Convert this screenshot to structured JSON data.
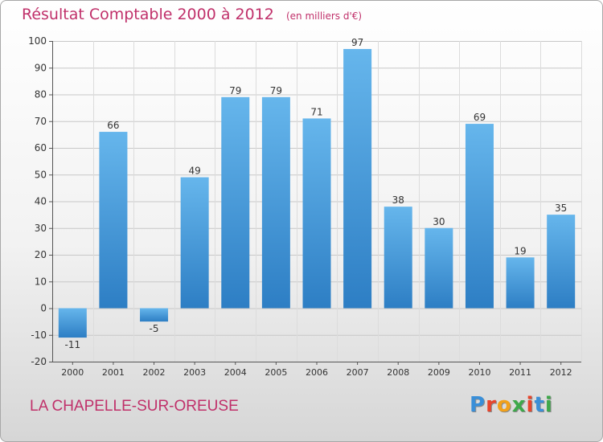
{
  "title": "Résultat Comptable 2000 à 2012",
  "subtitle": "(en milliers d'€)",
  "location": "LA CHAPELLE-SUR-OREUSE",
  "logo": {
    "text": "Proxiti",
    "letter_colors": [
      "#3a8fd8",
      "#e8452c",
      "#f2a11a",
      "#3da84a",
      "#e8452c",
      "#3a8fd8",
      "#3da84a"
    ]
  },
  "colors": {
    "bar_top": "#66b6ec",
    "bar_bottom": "#2d7ec4",
    "title": "#c0306a",
    "grid": "#c8c8c8"
  },
  "chart_data": {
    "type": "bar",
    "title": "Résultat Comptable 2000 à 2012",
    "subtitle": "(en milliers d'€)",
    "xlabel": "",
    "ylabel": "",
    "categories": [
      "2000",
      "2001",
      "2002",
      "2003",
      "2004",
      "2005",
      "2006",
      "2007",
      "2008",
      "2009",
      "2010",
      "2011",
      "2012"
    ],
    "values": [
      -11,
      66,
      -5,
      49,
      79,
      79,
      71,
      97,
      38,
      30,
      69,
      19,
      35
    ],
    "data_labels": [
      "-11",
      "66",
      "-5",
      "49",
      "79",
      "79",
      "71",
      "97",
      "38",
      "30",
      "69",
      "19",
      "35"
    ],
    "ylim": [
      -20,
      100
    ],
    "yticks": [
      -20,
      -10,
      0,
      10,
      20,
      30,
      40,
      50,
      60,
      70,
      80,
      90,
      100
    ],
    "grid": true,
    "legend": "none"
  }
}
